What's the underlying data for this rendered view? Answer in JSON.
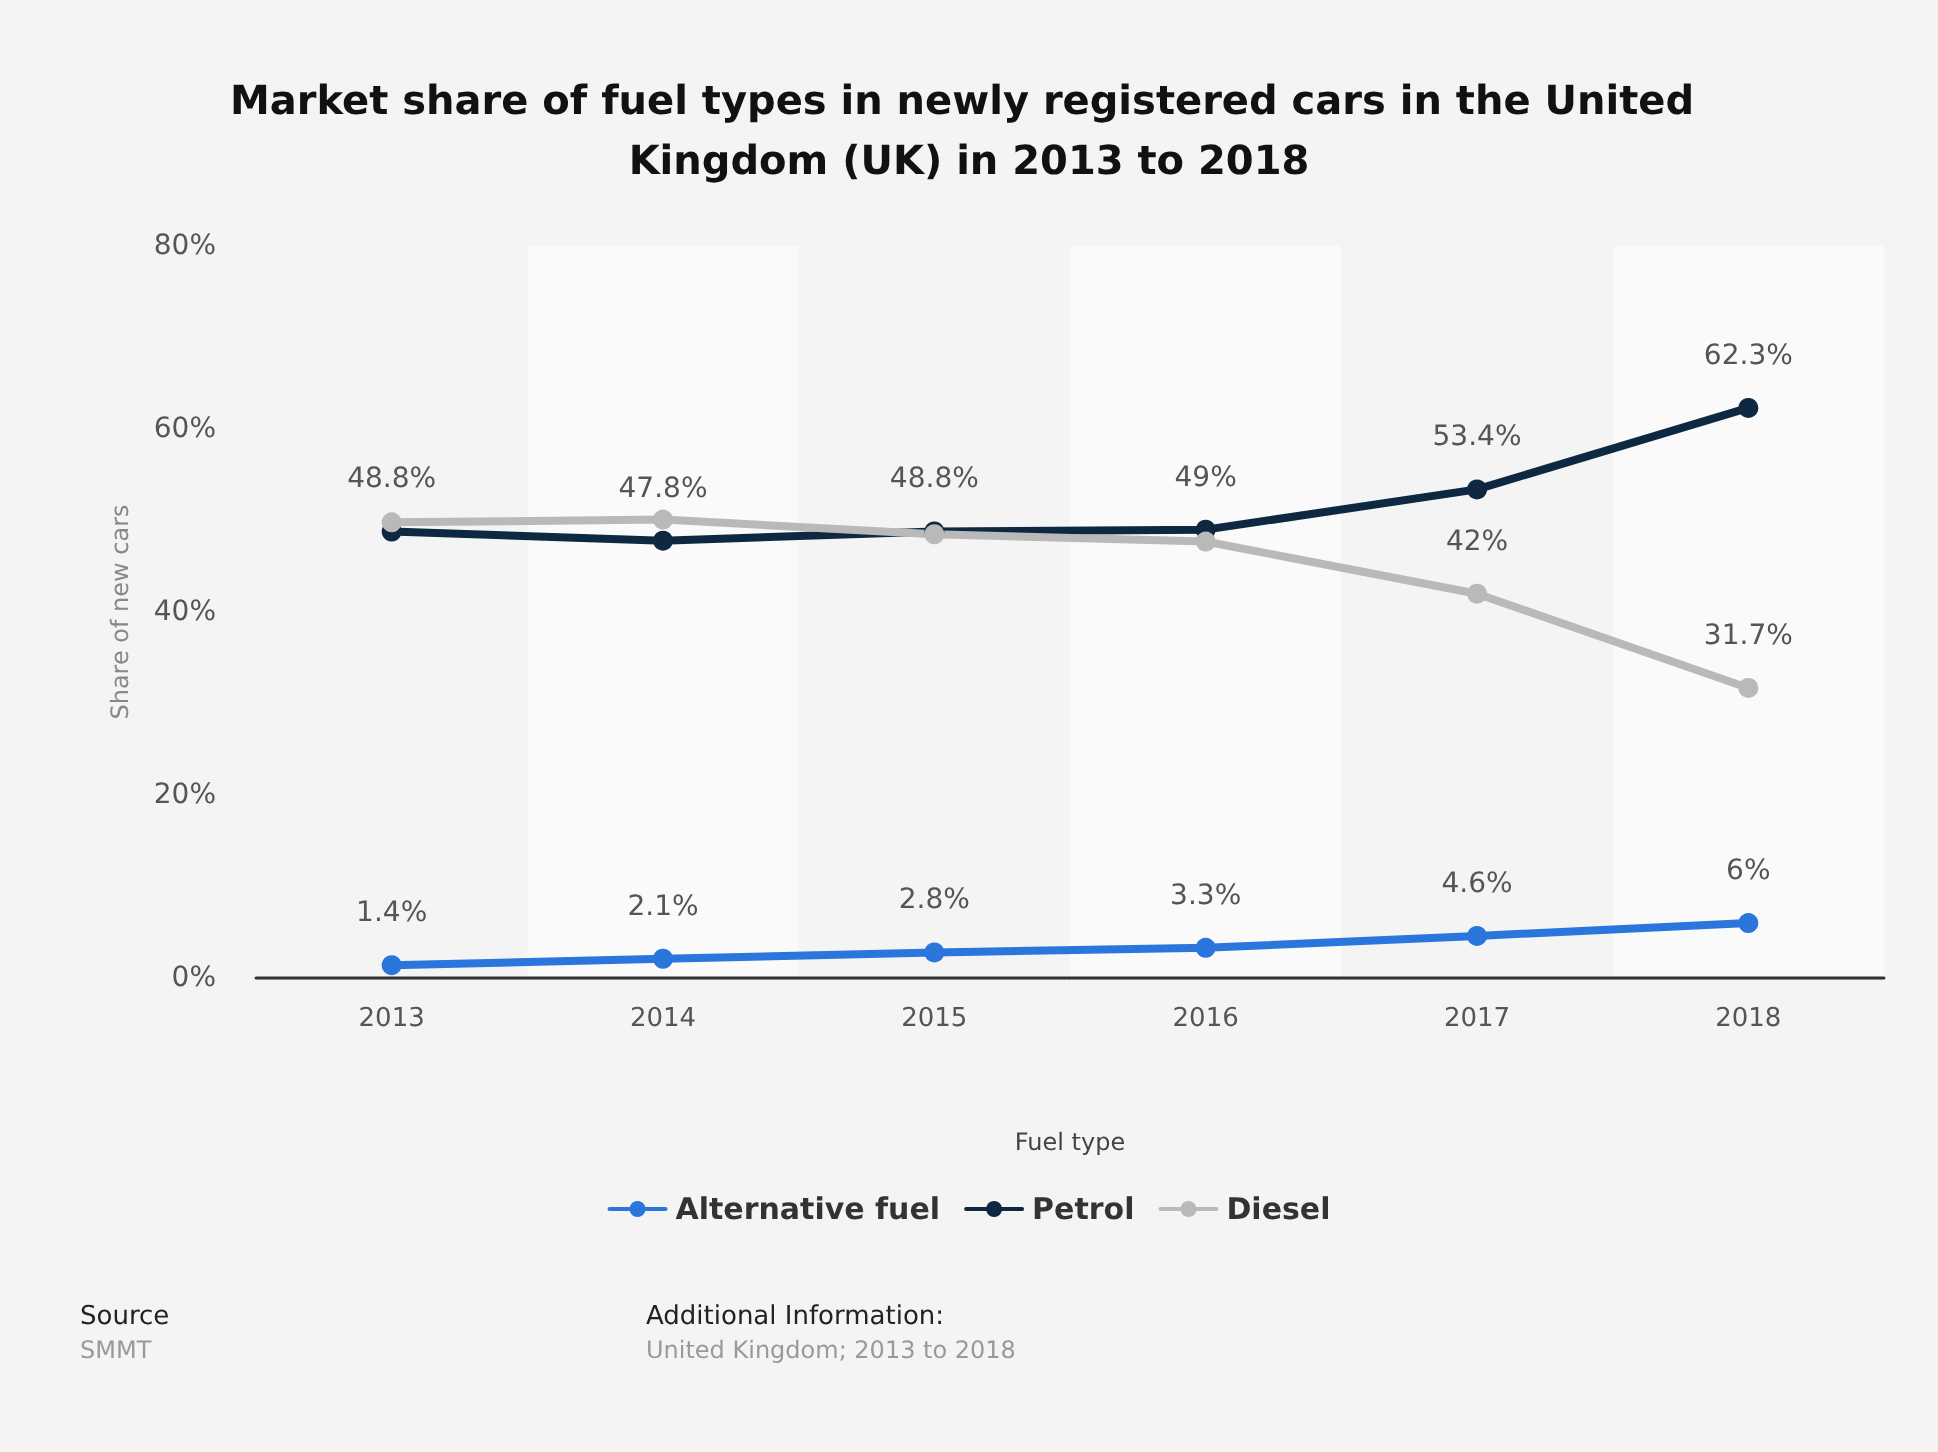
{
  "chart_data": {
    "type": "line",
    "title": "Market share of fuel types in newly registered cars in the United Kingdom (UK) in 2013 to 2018",
    "xlabel": "Fuel type",
    "ylabel": "Share of new cars",
    "categories": [
      "2013",
      "2014",
      "2015",
      "2016",
      "2017",
      "2018"
    ],
    "series": [
      {
        "name": "Alternative fuel",
        "color": "#2a76dd",
        "values": [
          1.4,
          2.1,
          2.8,
          3.3,
          4.6,
          6
        ],
        "value_labels": [
          "1.4%",
          "2.1%",
          "2.8%",
          "3.3%",
          "4.6%",
          "6%"
        ]
      },
      {
        "name": "Petrol",
        "color": "#0e2841",
        "values": [
          48.8,
          47.8,
          48.8,
          49,
          53.4,
          62.3
        ],
        "value_labels": [
          "48.8%",
          "47.8%",
          "48.8%",
          "49%",
          "53.4%",
          "62.3%"
        ]
      },
      {
        "name": "Diesel",
        "color": "#b9b9b9",
        "values": [
          49.8,
          50.1,
          48.5,
          47.7,
          42,
          31.7
        ],
        "value_labels": [
          null,
          null,
          null,
          null,
          "42%",
          "31.7%"
        ]
      }
    ],
    "ylim": [
      0,
      80
    ],
    "yticks": [
      {
        "value": 0,
        "label": "0%"
      },
      {
        "value": 20,
        "label": "20%"
      },
      {
        "value": 40,
        "label": "40%"
      },
      {
        "value": 60,
        "label": "60%"
      },
      {
        "value": 80,
        "label": "80%"
      }
    ],
    "grid": "y",
    "legend": "bottom",
    "marker": "circle",
    "line_style": "solid",
    "annotations": [
      "Source",
      "SMMT",
      "Additional Information:",
      "United Kingdom; 2013 to 2018"
    ]
  }
}
